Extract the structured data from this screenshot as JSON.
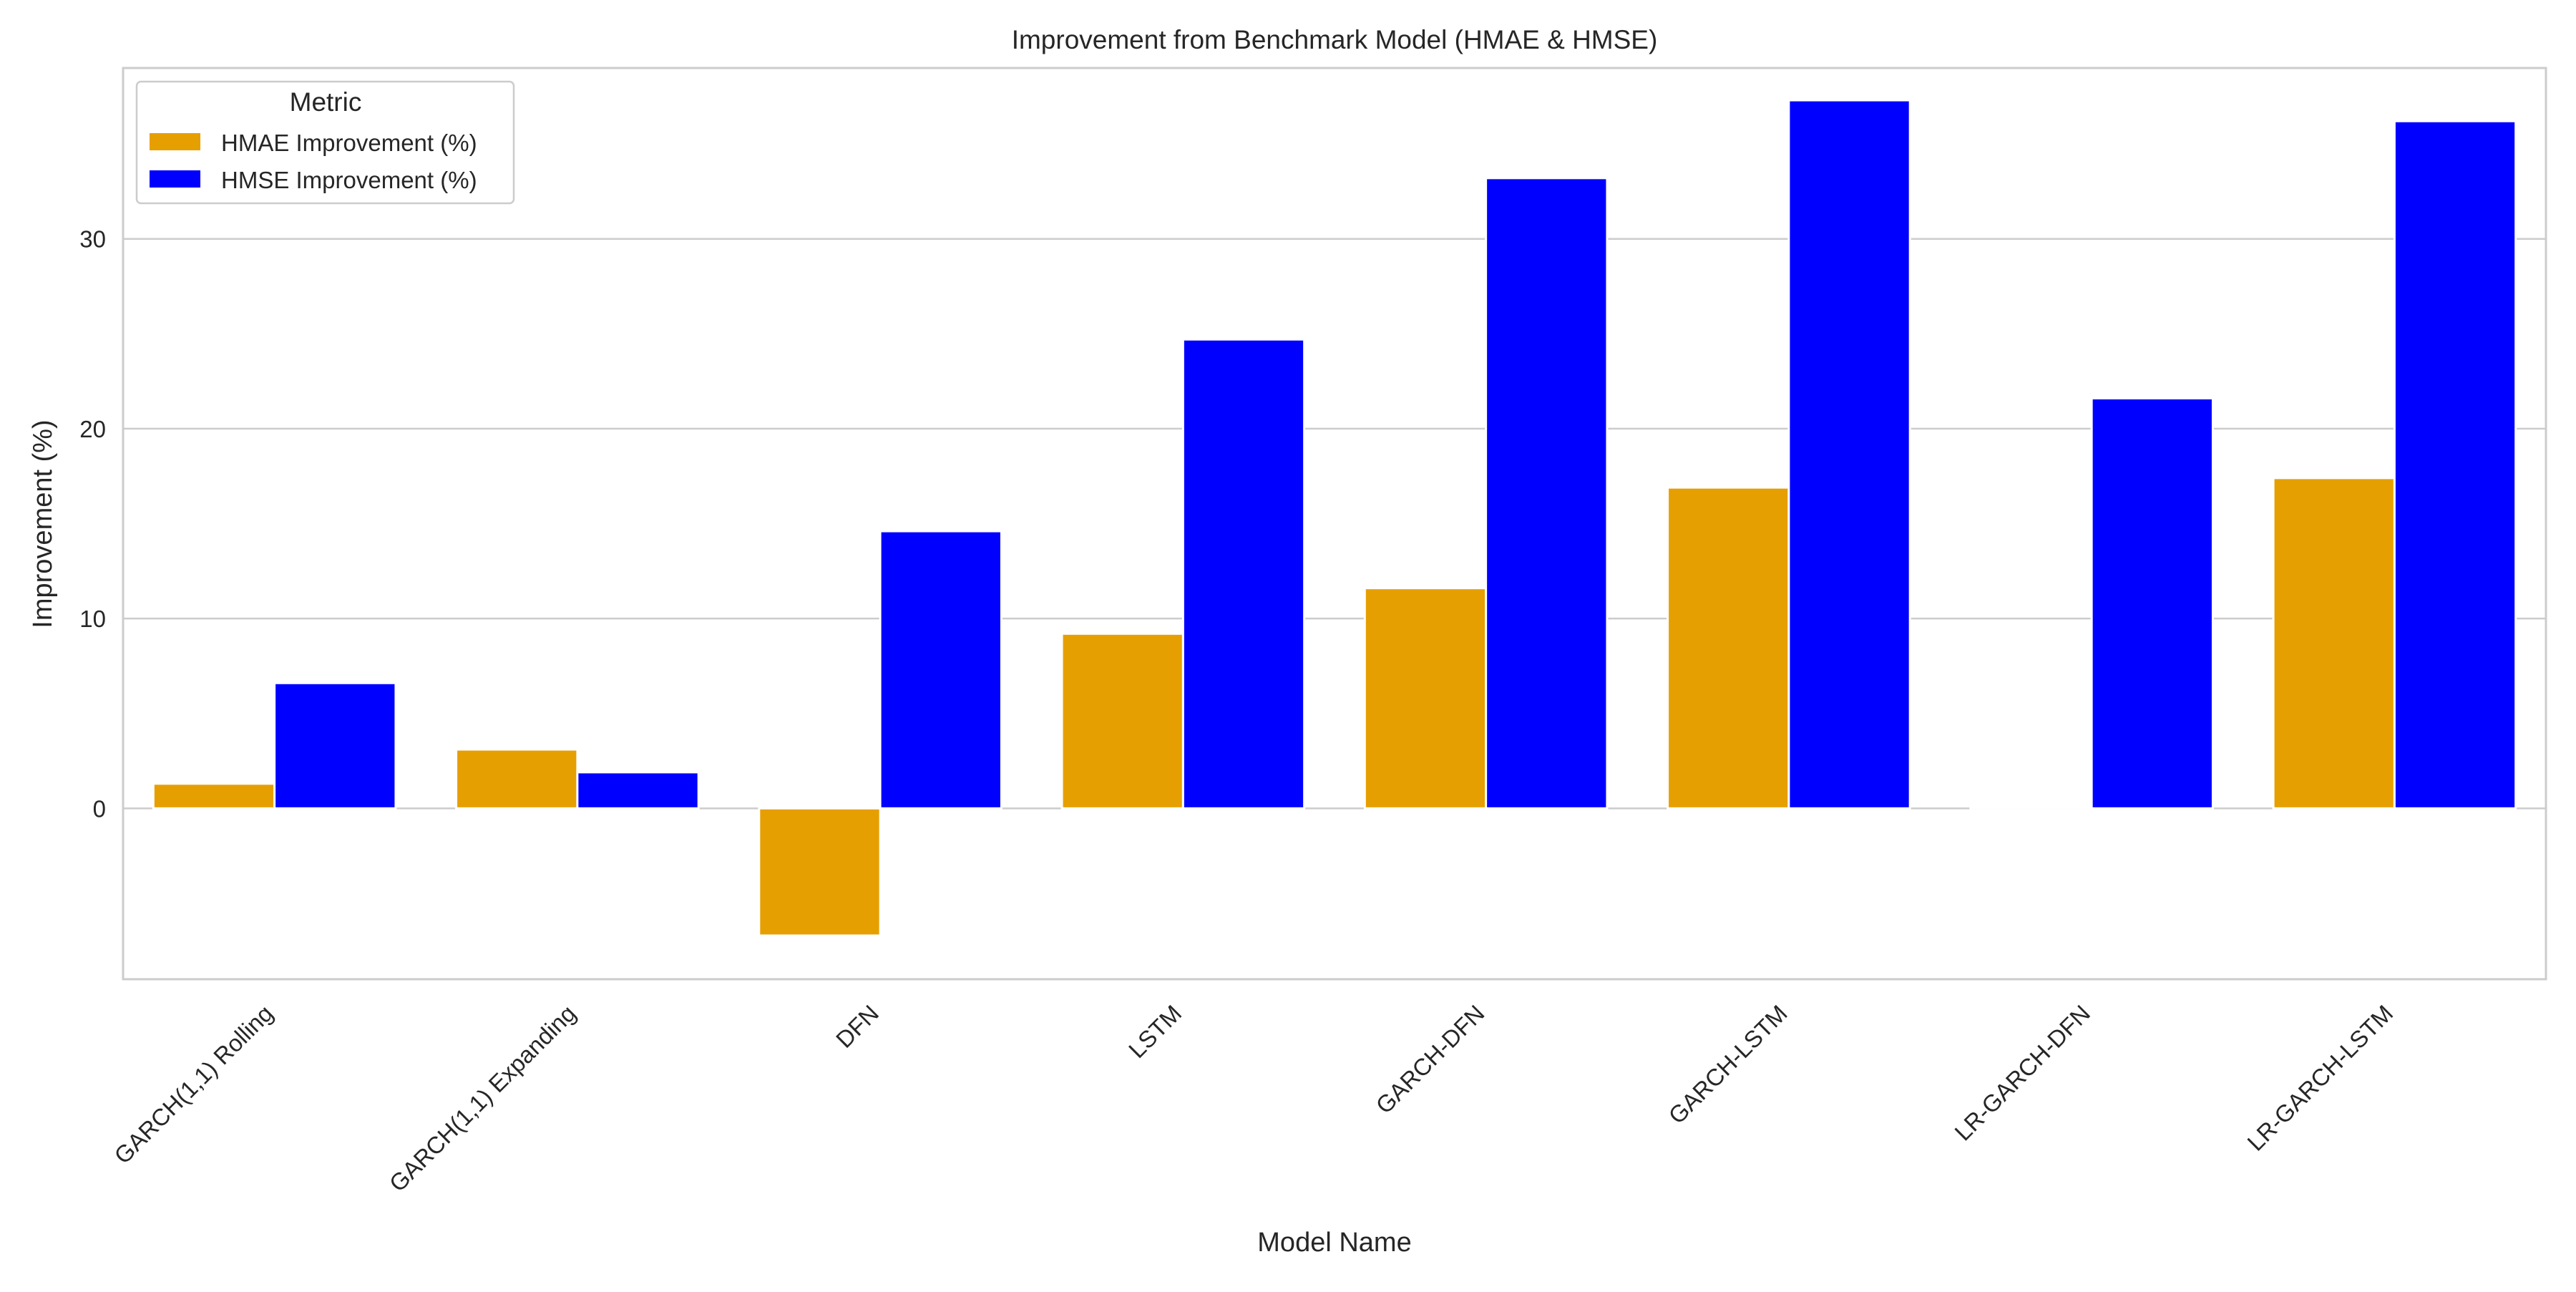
{
  "chart_data": {
    "type": "bar",
    "title": "Improvement from Benchmark Model (HMAE & HMSE)",
    "xlabel": "Model Name",
    "ylabel": "Improvement (%)",
    "ylim": [
      -9,
      39
    ],
    "yticks": [
      0,
      10,
      20,
      30
    ],
    "grid": "horizontal",
    "legend": {
      "title": "Metric",
      "placement": "top-left"
    },
    "categories": [
      "GARCH(1,1) Rolling",
      "GARCH(1,1) Expanding",
      "DFN",
      "LSTM",
      "GARCH-DFN",
      "GARCH-LSTM",
      "LR-GARCH-DFN",
      "LR-GARCH-LSTM"
    ],
    "series": [
      {
        "name": "HMAE Improvement (%)",
        "color": "#E69F00",
        "values": [
          1.3,
          3.1,
          -6.7,
          9.2,
          11.6,
          16.9,
          0.1,
          17.4
        ]
      },
      {
        "name": "HMSE Improvement (%)",
        "color": "#0000FF",
        "values": [
          6.6,
          1.9,
          14.6,
          24.7,
          33.2,
          37.3,
          21.6,
          36.2
        ]
      }
    ]
  }
}
